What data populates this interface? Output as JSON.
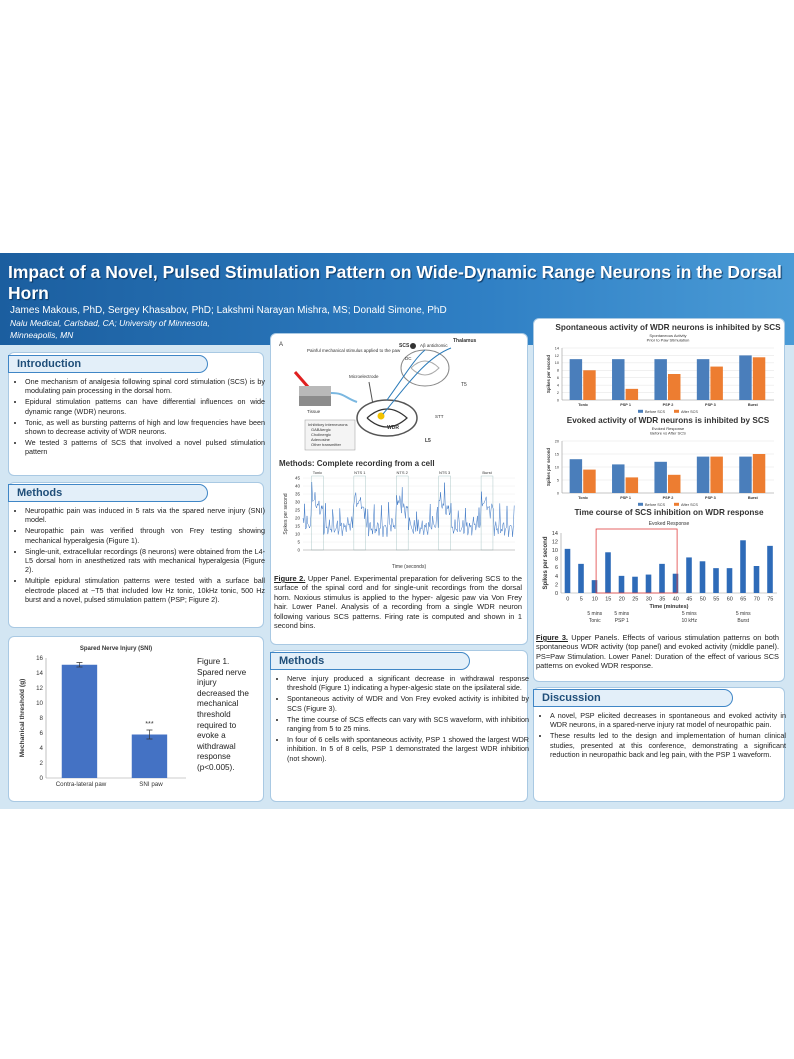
{
  "header": {
    "title": "Impact of a Novel, Pulsed Stimulation Pattern on Wide-Dynamic Range Neurons in the Dorsal Horn",
    "authors": "James Makous, PhD, Sergey Khasabov, PhD; Lakshmi Narayan Mishra, MS; Donald Simone, PhD",
    "affiliation": [
      "Nalu Medical, Carlsbad, CA; University of Minnesota,",
      "Minneapolis, MN"
    ]
  },
  "introduction": {
    "heading": "Introduction",
    "bullets": [
      "One mechanism of analgesia following spinal cord stimulation (SCS) is by modulating pain processing in the dorsal horn.",
      "Epidural stimulation patterns can have differential influences on wide dynamic range (WDR) neurons.",
      "Tonic, as well as bursting patterns of high and low frequencies have been shown to decrease activity of WDR neurons.",
      "We tested 3 patterns of SCS that involved a novel pulsed stimulation pattern"
    ]
  },
  "methods": {
    "heading": "Methods",
    "bullets": [
      "Neuropathic pain was induced in 5 rats via the spared nerve injury (SNI) model.",
      "Neuropathic pain was verified through von Frey testing showing mechanical hyperalgesia (Figure 1).",
      "Single-unit, extracellular recordings (8 neurons) were obtained from the L4-L5 dorsal horn in anesthetized rats with mechanical hyperalgesia (Figure 2).",
      "Multiple epidural stimulation patterns were tested with a surface ball electrode placed at ~T5 that included low Hz tonic, 10kHz tonic, 500 Hz burst and a novel, pulsed stimulation pattern (PSP; Figure 2)."
    ]
  },
  "sni_chart": {
    "type": "bar",
    "title": "Spared Nerve Injury (SNI)",
    "ylabel": "Mechanical threshold (g)",
    "categories": [
      "Contra-lateral paw",
      "SNI paw"
    ],
    "values": [
      15.1,
      5.8
    ],
    "errors": [
      0.3,
      0.6
    ],
    "value_labels": [
      null,
      "***"
    ],
    "color": "#4472c4",
    "ylim": [
      0,
      16
    ],
    "yticks": [
      0,
      2,
      4,
      6,
      8,
      10,
      12,
      14,
      16
    ],
    "caption": "Figure 1. Spared nerve injury decreased the mechanical threshold required to evoke a withdrawal response (p<0.005)."
  },
  "diagram": {
    "labels": [
      "A",
      "Painful mechanical stimulus applied to the paw",
      "Tissue",
      "Microelectrode",
      "SCS",
      "Aβ antidromic",
      "Thalamus",
      "DC",
      "T5",
      "STT",
      "WDR",
      "L5",
      "Inhibitory interneurons",
      "GABAergic",
      "Cholinergic",
      "Adenosine",
      "Other transmitter"
    ]
  },
  "recording": {
    "title": "Methods: Complete recording from a cell",
    "ylabel": "Spikes per second",
    "xlabel": "Time (seconds)",
    "segments": [
      "Tonic",
      "NTS 1",
      "NTS 2",
      "NTS 3",
      "Burst"
    ],
    "ylim": [
      0,
      45
    ],
    "yticks": [
      0,
      5,
      10,
      15,
      20,
      25,
      30,
      35,
      40,
      45
    ]
  },
  "figure2": {
    "label": "Figure 2.",
    "text": "Upper Panel. Experimental preparation for delivering SCS to the surface of the spinal cord and for single-unit recordings from the dorsal horn. Noxious stimulus is applied to the hyper- algesic paw via Von Frey hair. Lower Panel. Analysis of a recording from a single WDR neuron following various SCS patterns. Firing rate is computed and shown in 1 second bins."
  },
  "results": {
    "heading": "Methods",
    "bullets": [
      "Nerve injury produced a significant decrease in withdrawal response threshold (Figure 1) indicating a hyper-algesic state on the ipsilateral side.",
      "Spontaneous activity of WDR and Von Frey evoked activity is inhibited by SCS (Figure 3).",
      "The time course of SCS effects can vary with SCS waveform, with inhibition ranging from 5 to 25 mins.",
      "In four of 6 cells with spontaneous activity, PSP 1 showed the largest WDR inhibition.  In 5 of 8 cells, PSP 1 demonstrated the largest WDR inhibition (not shown)."
    ]
  },
  "spontaneous_chart": {
    "type": "bar",
    "title": "Spontaneous activity of WDR neurons is inhibited by SCS",
    "subtitle": [
      "Spontaneous Activity",
      "Prior to Paw Stimulation"
    ],
    "ylabel": "Spikes per second",
    "categories": [
      "Tonic",
      "PSP 1",
      "PSP 2",
      "PSP 3",
      "Burst"
    ],
    "series": [
      {
        "name": "Before SCS",
        "color": "#4a7ebb",
        "values": [
          11,
          11,
          11,
          11,
          12
        ]
      },
      {
        "name": "After SCS",
        "color": "#ed7d31",
        "values": [
          8,
          3,
          7,
          9,
          11.5
        ]
      }
    ],
    "ylim": [
      0,
      14
    ],
    "yticks": [
      0,
      2,
      4,
      6,
      8,
      10,
      12,
      14
    ]
  },
  "evoked_chart": {
    "type": "bar",
    "title": "Evoked activity of WDR neurons is inhibited by SCS",
    "subtitle": [
      "Evoked Response",
      "Before vs After SCS"
    ],
    "ylabel": "Spikes per second",
    "categories": [
      "Tonic",
      "PSP 1",
      "PSP 2",
      "PSP 3",
      "Burst"
    ],
    "series": [
      {
        "name": "Before SCS",
        "color": "#4a7ebb",
        "values": [
          13,
          11,
          12,
          14,
          14
        ]
      },
      {
        "name": "After SCS",
        "color": "#ed7d31",
        "values": [
          9,
          6,
          7,
          14,
          15
        ]
      }
    ],
    "ylim": [
      0,
      20
    ],
    "yticks": [
      0,
      5,
      10,
      15,
      20
    ]
  },
  "timecourse_chart": {
    "type": "bar",
    "title": "Time course of SCS inhibition on WDR response",
    "subtitle": "Evoked Response",
    "ylabel": "Spikes per second",
    "xlabel": "Time (minutes)",
    "categories": [
      0,
      5,
      10,
      15,
      20,
      25,
      30,
      35,
      40,
      45,
      50,
      55,
      60,
      65,
      70,
      75
    ],
    "values": [
      10.3,
      6.8,
      3,
      9.5,
      4,
      3.8,
      4.3,
      6.8,
      4.5,
      8.3,
      7.4,
      5.8,
      5.8,
      12.3,
      6.3,
      11
    ],
    "color": "#2e6bb8",
    "ylim": [
      0,
      14
    ],
    "yticks": [
      0,
      2,
      4,
      6,
      8,
      10,
      12,
      14
    ],
    "annotations": [
      {
        "lines": [
          "5 mins",
          "Tonic"
        ],
        "color": "#2e75b6"
      },
      {
        "lines": [
          "5 mins",
          "PSP 1"
        ],
        "color": "#3a9a3a"
      },
      {
        "lines": [
          "5 mins",
          "10 kHz"
        ],
        "color": "#c00000"
      },
      {
        "lines": [
          "5 mins",
          "Burst"
        ],
        "color": "#c55a11"
      }
    ]
  },
  "figure3": {
    "label": "Figure 3.",
    "text": "Upper Panels. Effects of various stimulation patterns on both spontaneous WDR activity (top panel) and evoked activity (middle panel). PS=Paw Stimulation. Lower Panel: Duration of the effect of various SCS patterns on evoked WDR response."
  },
  "discussion": {
    "heading": "Discussion",
    "bullets": [
      "A novel, PSP elicited decreases in spontaneous and evoked activity in WDR neurons, in a spared-nerve injury rat model of neuropathic pain.",
      "These results led to the design and implementation of human clinical studies, presented at this conference, demonstrating a significant reduction in neuropathic back and leg pain, with the PSP 1 waveform."
    ]
  }
}
